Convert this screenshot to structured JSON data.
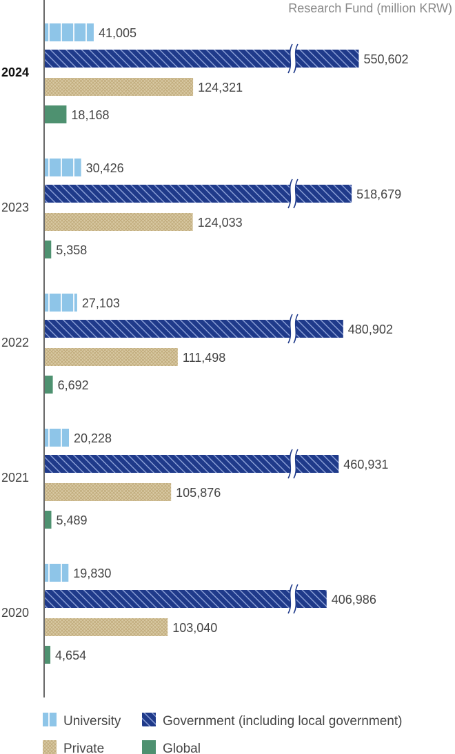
{
  "chart_data": {
    "type": "bar",
    "orientation": "horizontal",
    "unit_label": "Research Fund (million KRW)",
    "categories": [
      "2024",
      "2023",
      "2022",
      "2021",
      "2020"
    ],
    "highlight_category": "2024",
    "axis_break": true,
    "series": [
      {
        "name": "University",
        "values": [
          41005,
          30426,
          27103,
          20228,
          19830
        ],
        "color": "#8ec5e8",
        "pattern": "vertical-stripes"
      },
      {
        "name": "Government (including local government)",
        "values": [
          550602,
          518679,
          480902,
          460931,
          406986
        ],
        "color": "#1f3a8a",
        "pattern": "diagonal-hatch"
      },
      {
        "name": "Private",
        "values": [
          124321,
          124033,
          111498,
          105876,
          103040
        ],
        "color": "#d8c9a3",
        "pattern": "crosshatch"
      },
      {
        "name": "Global",
        "values": [
          18168,
          5358,
          6692,
          5489,
          4654
        ],
        "color": "#4e9170",
        "pattern": "solid"
      }
    ],
    "value_labels": [
      [
        "41,005",
        "550,602",
        "124,321",
        "18,168"
      ],
      [
        "30,426",
        "518,679",
        "124,033",
        "5,358"
      ],
      [
        "27,103",
        "480,902",
        "111,498",
        "6,692"
      ],
      [
        "20,228",
        "460,931",
        "105,876",
        "5,489"
      ],
      [
        "19,830",
        "406,986",
        "103,040",
        "4,654"
      ]
    ],
    "legend_placement": "bottom",
    "grid": false
  }
}
